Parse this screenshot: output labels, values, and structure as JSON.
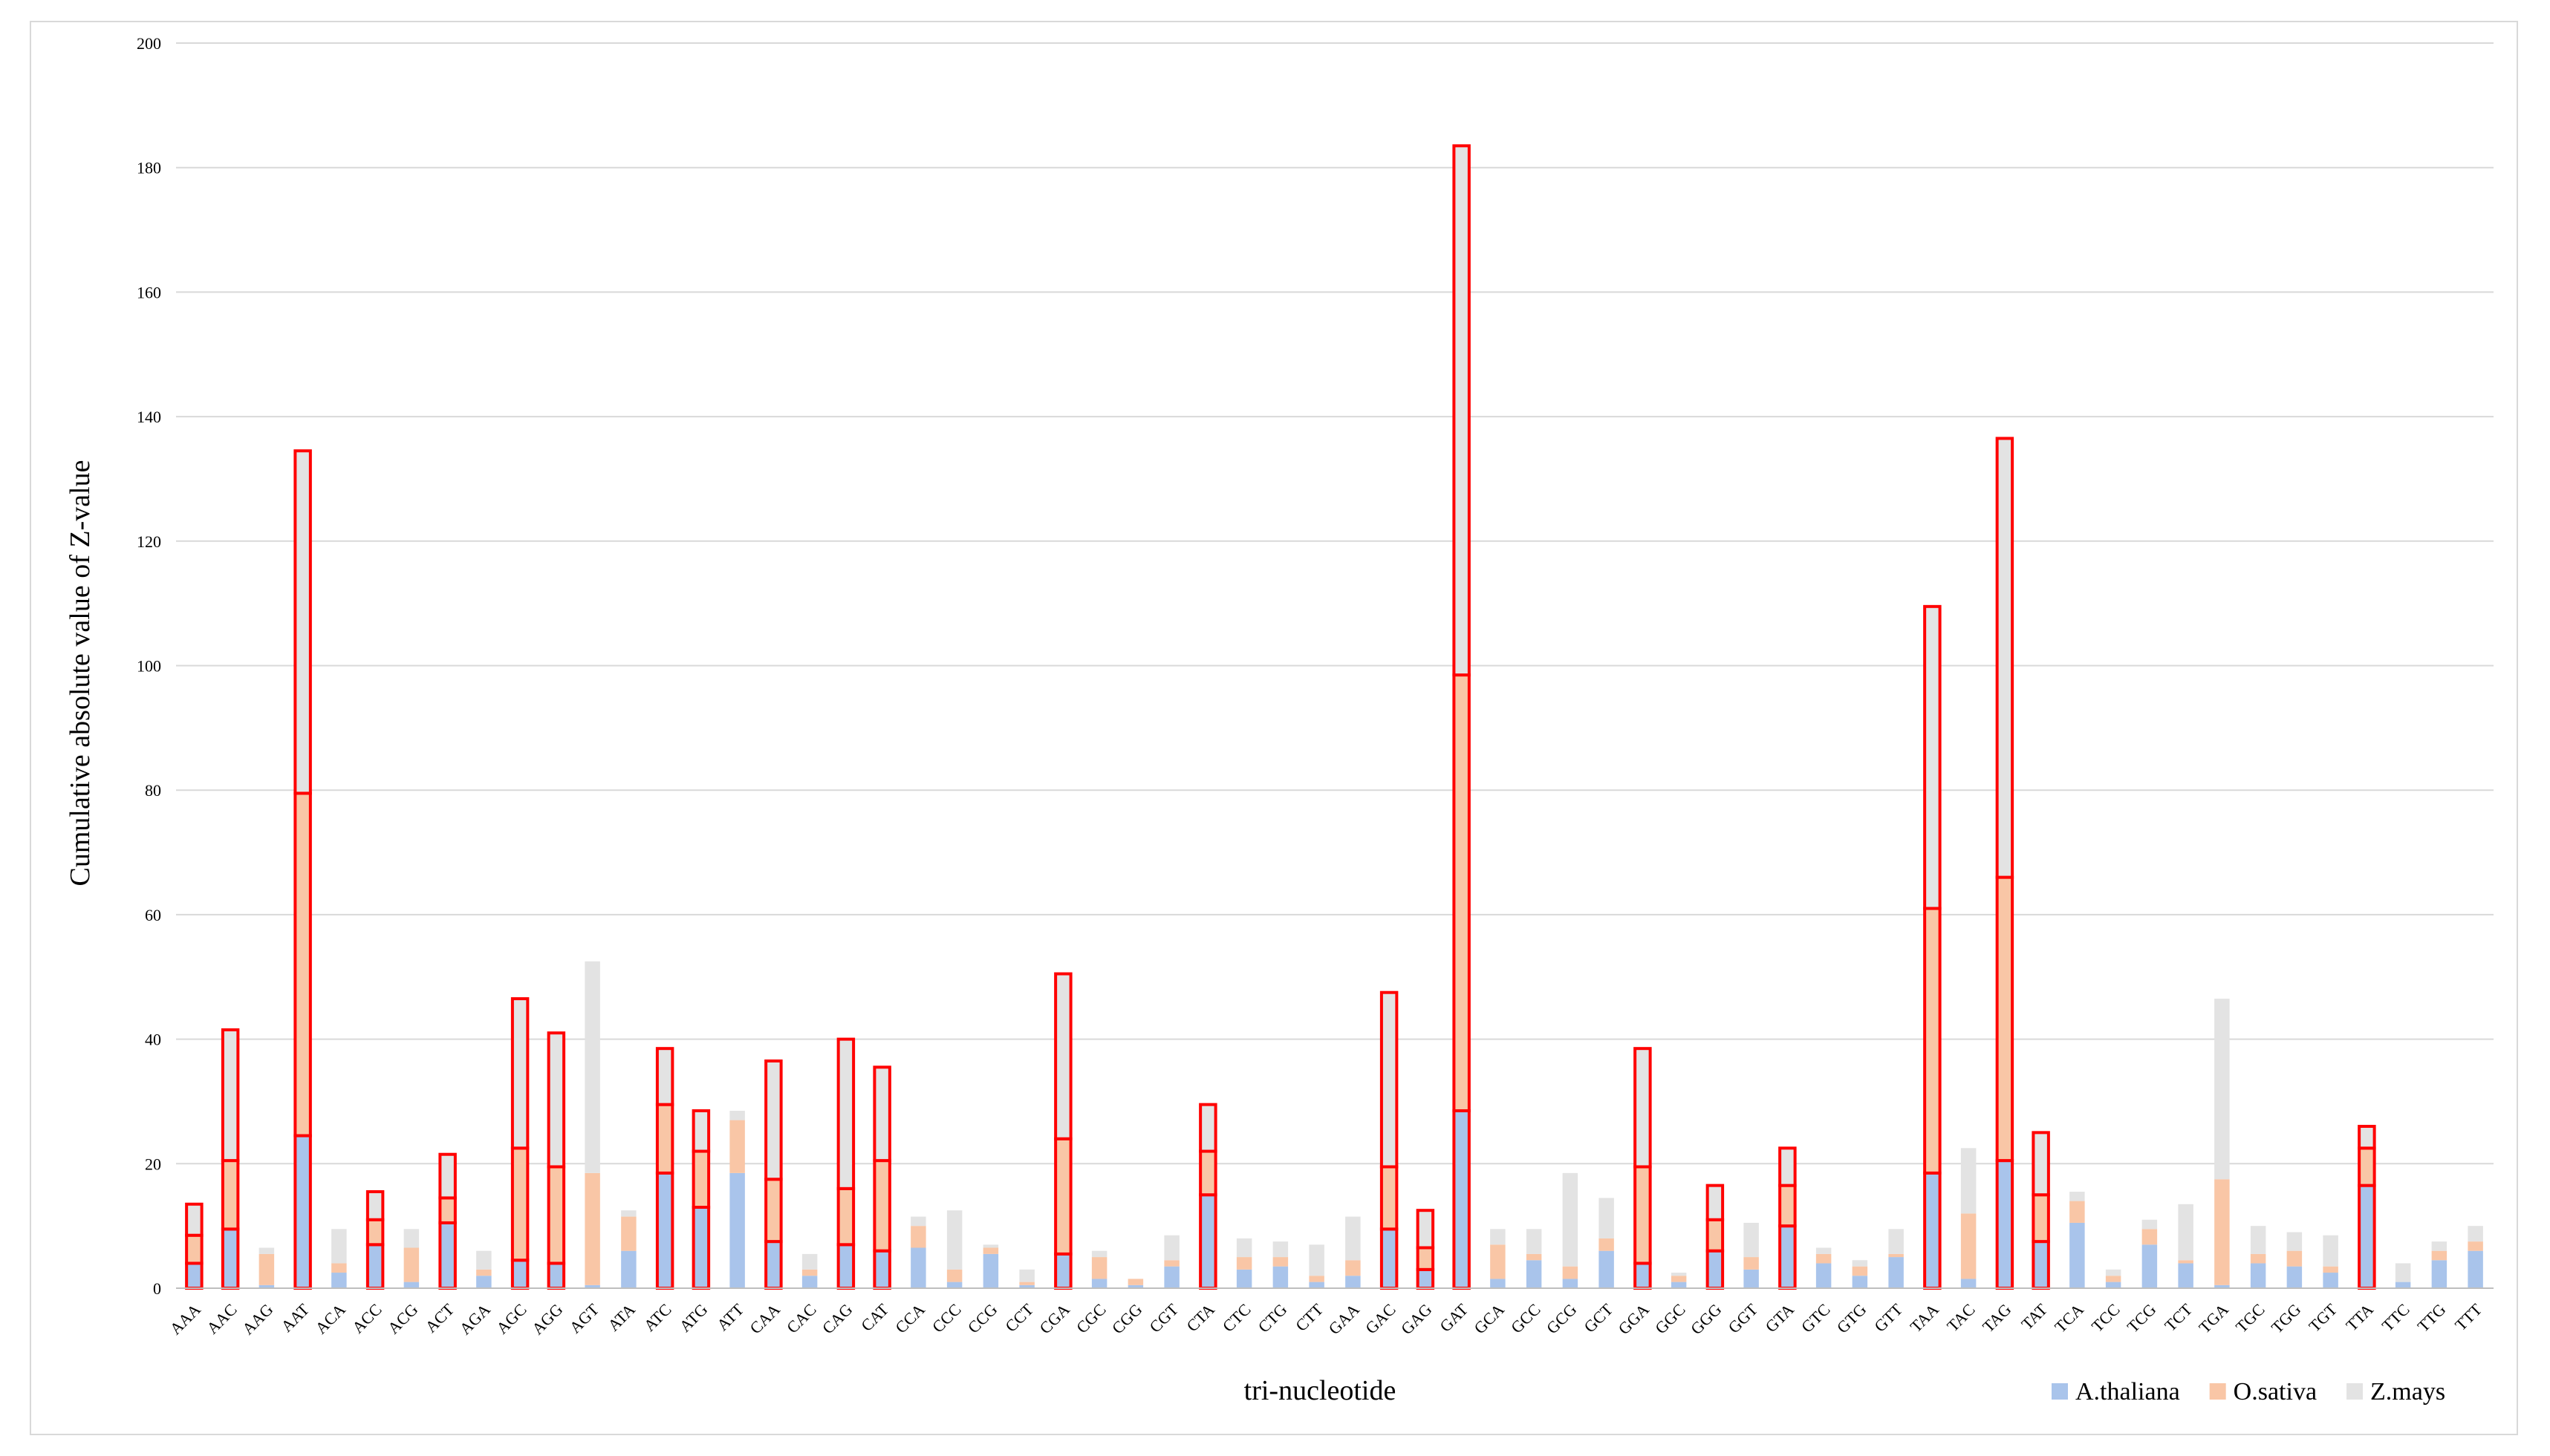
{
  "chart_data": {
    "type": "bar",
    "stacked": true,
    "title": "",
    "xlabel": "tri-nucleotide",
    "ylabel": "Cumulative  absolute value of Z-value",
    "ylim": [
      0,
      200
    ],
    "yticks": [
      0,
      20,
      40,
      60,
      80,
      100,
      120,
      140,
      160,
      180,
      200
    ],
    "grid": true,
    "legend_position": "bottom-right",
    "colors": {
      "A.thaliana": "#a9c4eb",
      "O.sativa": "#f9c6a6",
      "Z.mays": "#e3e3e3",
      "highlight_border": "#ff0000"
    },
    "categories": [
      "AAA",
      "AAC",
      "AAG",
      "AAT",
      "ACA",
      "ACC",
      "ACG",
      "ACT",
      "AGA",
      "AGC",
      "AGG",
      "AGT",
      "ATA",
      "ATC",
      "ATG",
      "ATT",
      "CAA",
      "CAC",
      "CAG",
      "CAT",
      "CCA",
      "CCC",
      "CCG",
      "CCT",
      "CGA",
      "CGC",
      "CGG",
      "CGT",
      "CTA",
      "CTC",
      "CTG",
      "CTT",
      "GAA",
      "GAC",
      "GAG",
      "GAT",
      "GCA",
      "GCC",
      "GCG",
      "GCT",
      "GGA",
      "GGC",
      "GGG",
      "GGT",
      "GTA",
      "GTC",
      "GTG",
      "GTT",
      "TAA",
      "TAC",
      "TAG",
      "TAT",
      "TCA",
      "TCC",
      "TCG",
      "TCT",
      "TGA",
      "TGC",
      "TGG",
      "TGT",
      "TTA",
      "TTC",
      "TTG",
      "TTT"
    ],
    "series": [
      {
        "name": "A.thaliana",
        "values": [
          4,
          9.5,
          0.5,
          24.5,
          2.5,
          7,
          1,
          10.5,
          2,
          4.5,
          4,
          0.5,
          6,
          18.5,
          13,
          18.5,
          7.5,
          2,
          7,
          6,
          6.5,
          1,
          5.5,
          0.5,
          5.5,
          1.5,
          0.5,
          3.5,
          15,
          3,
          3.5,
          1,
          2,
          9.5,
          3,
          28.5,
          1.5,
          4.5,
          1.5,
          6,
          4,
          1,
          6,
          3,
          10,
          4,
          2,
          5,
          18.5,
          1.5,
          20.5,
          7.5,
          10.5,
          1,
          7,
          4,
          0.5,
          4,
          3.5,
          2.5,
          16.5,
          1,
          4.5,
          6
        ]
      },
      {
        "name": "O.sativa",
        "values": [
          4.5,
          11,
          5,
          55,
          1.5,
          4,
          5.5,
          4,
          1,
          18,
          15.5,
          18,
          5.5,
          11,
          9,
          8.5,
          10,
          1,
          9,
          14.5,
          3.5,
          2,
          1,
          0.5,
          18.5,
          3.5,
          1,
          1,
          7,
          2,
          1.5,
          1,
          2.5,
          10,
          3.5,
          70,
          5.5,
          1,
          2,
          2,
          15.5,
          1,
          5,
          2,
          6.5,
          1.5,
          1.5,
          0.5,
          42.5,
          10.5,
          45.5,
          7.5,
          3.5,
          1,
          2.5,
          0.5,
          17,
          1.5,
          2.5,
          1,
          6,
          0,
          1.5,
          1.5
        ]
      },
      {
        "name": "Z.mays",
        "values": [
          5,
          21,
          1,
          55,
          5.5,
          4.5,
          3,
          7,
          3,
          24,
          21.5,
          34,
          1,
          9,
          6.5,
          1.5,
          19,
          2.5,
          24,
          15,
          1.5,
          9.5,
          0.5,
          2,
          26.5,
          1,
          0,
          4,
          7.5,
          3,
          2.5,
          5,
          7,
          28,
          6,
          85,
          2.5,
          4,
          15,
          6.5,
          19,
          0.5,
          5.5,
          5.5,
          6,
          1,
          1,
          4,
          48.5,
          10.5,
          70.5,
          10,
          1.5,
          1,
          1.5,
          9,
          29,
          4.5,
          3,
          5,
          3.5,
          3,
          1.5,
          2.5
        ]
      }
    ],
    "highlighted": [
      "AAA",
      "AAC",
      "AAT",
      "ACC",
      "ACT",
      "AGC",
      "AGG",
      "ATC",
      "ATG",
      "CAA",
      "CAG",
      "CAT",
      "CGA",
      "CTA",
      "GAC",
      "GAG",
      "GAT",
      "GGA",
      "GGG",
      "GTA",
      "TAA",
      "TAG",
      "TAT",
      "TTA"
    ]
  }
}
